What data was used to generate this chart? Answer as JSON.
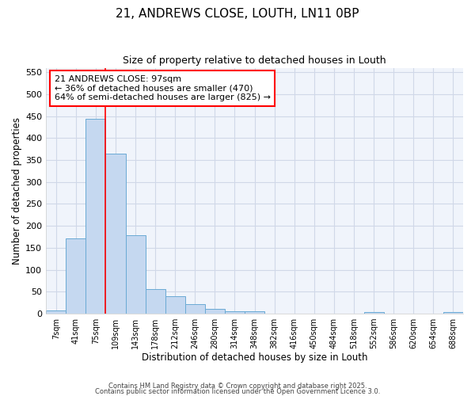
{
  "title1": "21, ANDREWS CLOSE, LOUTH, LN11 0BP",
  "title2": "Size of property relative to detached houses in Louth",
  "xlabel": "Distribution of detached houses by size in Louth",
  "ylabel": "Number of detached properties",
  "bar_labels": [
    "7sqm",
    "41sqm",
    "75sqm",
    "109sqm",
    "143sqm",
    "178sqm",
    "212sqm",
    "246sqm",
    "280sqm",
    "314sqm",
    "348sqm",
    "382sqm",
    "416sqm",
    "450sqm",
    "484sqm",
    "518sqm",
    "552sqm",
    "586sqm",
    "620sqm",
    "654sqm",
    "688sqm"
  ],
  "bar_values": [
    8,
    172,
    443,
    364,
    178,
    55,
    40,
    21,
    10,
    6,
    5,
    0,
    0,
    0,
    0,
    0,
    4,
    0,
    0,
    0,
    4
  ],
  "bar_color": "#c5d8f0",
  "bar_edge_color": "#6aaad4",
  "vline_x": 3.0,
  "vline_color": "red",
  "annotation_text": "21 ANDREWS CLOSE: 97sqm\n← 36% of detached houses are smaller (470)\n64% of semi-detached houses are larger (825) →",
  "annotation_box_color": "white",
  "annotation_box_edge_color": "red",
  "ylim": [
    0,
    560
  ],
  "yticks": [
    0,
    50,
    100,
    150,
    200,
    250,
    300,
    350,
    400,
    450,
    500,
    550
  ],
  "bg_color": "#ffffff",
  "plot_bg_color": "#f0f4fb",
  "grid_color": "#d0d8e8",
  "footer1": "Contains HM Land Registry data © Crown copyright and database right 2025.",
  "footer2": "Contains public sector information licensed under the Open Government Licence 3.0."
}
